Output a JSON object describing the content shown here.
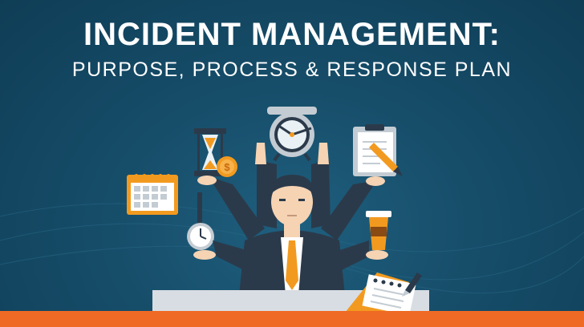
{
  "header": {
    "title": "INCIDENT MANAGEMENT:",
    "subtitle": "PURPOSE, PROCESS & RESPONSE PLAN"
  },
  "illustration": {
    "subject": "businessman-with-six-arms",
    "items": [
      "hourglass-icon",
      "coin-icon",
      "calendar-icon",
      "stopwatch-icon",
      "alarm-clock-icon",
      "clipboard-icon",
      "coffee-cup-icon",
      "notepad-icon",
      "pen-icon"
    ]
  },
  "colors": {
    "background": "#164d69",
    "accent_orange": "#ef6a24",
    "suit": "#2b3a4a",
    "tie": "#f29a1f",
    "desk": "#d8dde3"
  }
}
